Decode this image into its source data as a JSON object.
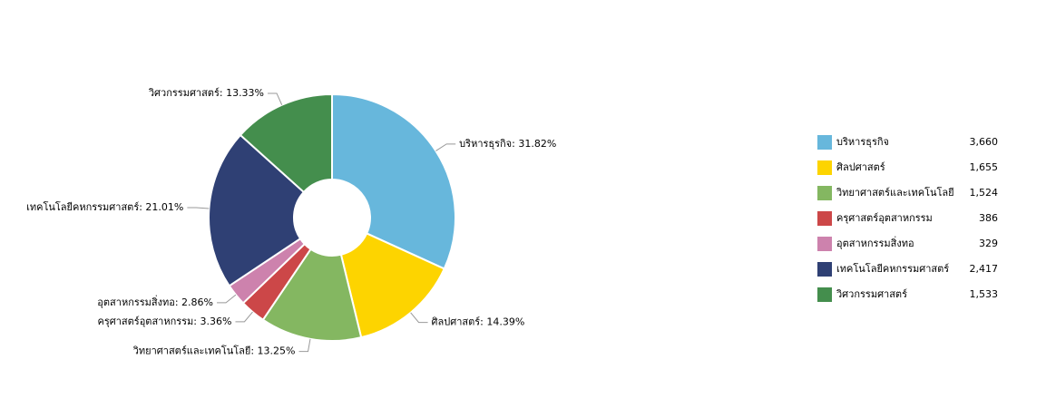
{
  "chart_data": {
    "type": "pie",
    "categories": [
      "บริหารธุรกิจ",
      "ศิลปศาสตร์",
      "วิทยาศาสตร์และเทคโนโลยี",
      "ครุศาสตร์อุตสาหกรรม",
      "อุตสาหกรรมสิ่งทอ",
      "เทคโนโลยีคหกรรมศาสตร์",
      "วิศวกรรมศาสตร์"
    ],
    "values": [
      3660,
      1655,
      1524,
      386,
      329,
      2417,
      1533
    ],
    "value_labels": [
      "3,660",
      "1,655",
      "1,524",
      "386",
      "329",
      "2,417",
      "1,533"
    ],
    "data_labels": [
      "บริหารธุรกิจ: 31.82%",
      "ศิลปศาสตร์: 14.39%",
      "วิทยาศาสตร์และเทคโนโลยี: 13.25%",
      "ครุศาสตร์อุตสาหกรรม: 3.36%",
      "อุตสาหกรรมสิ่งทอ: 2.86%",
      "เทคโนโลยีคหกรรมศาสตร์: 21.01%",
      "วิศวกรรมศาสตร์: 13.33%"
    ],
    "colors": [
      "#67b7dc",
      "#fdd400",
      "#84b761",
      "#cc4748",
      "#cd82ad",
      "#2f4074",
      "#448e4d"
    ],
    "legend": "right"
  }
}
